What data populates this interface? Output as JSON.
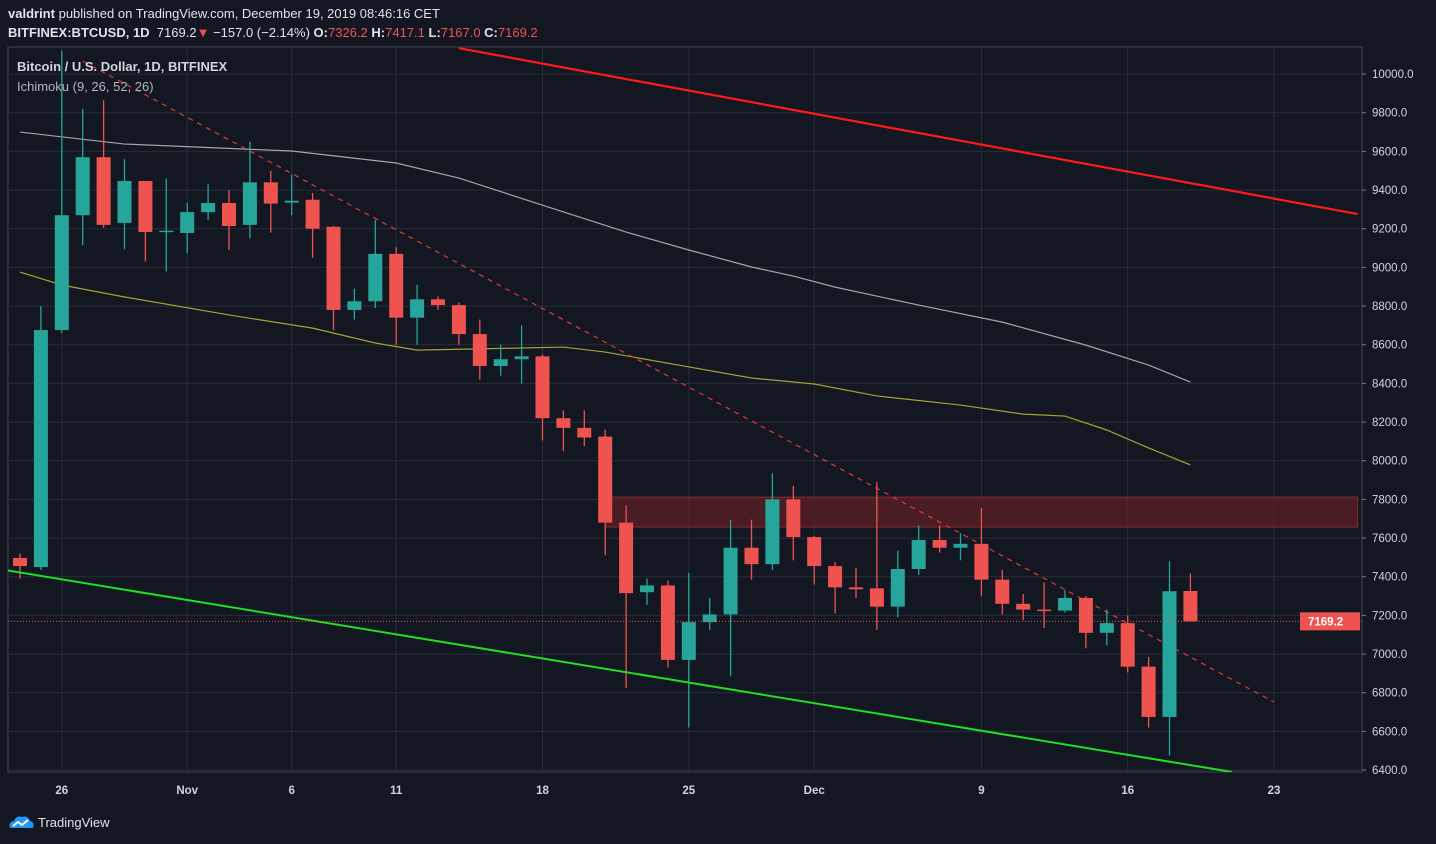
{
  "header": {
    "author": "valdrint",
    "published": "published on TradingView.com, December 19, 2019 08:46:16 CET",
    "symbol": "BITFINEX:BTCUSD, 1D",
    "last": "7169.2",
    "change": "−157.0 (−2.14%)",
    "open_label": "O:",
    "open": "7326.2",
    "high_label": "H:",
    "high": "7417.1",
    "low_label": "L:",
    "low": "7167.0",
    "close_label": "C:",
    "close": "7169.2"
  },
  "legend": {
    "title": "Bitcoin / U.S. Dollar, 1D, BITFINEX",
    "indicator": "Ichimoku (9, 26, 52, 26)"
  },
  "footer": {
    "brand": "TradingView"
  },
  "colors": {
    "up": "#26a69a",
    "down": "#ef5350",
    "background": "#131722",
    "grid": "#2a2e39",
    "resistance": "#ff1a1a",
    "support": "#22dd22",
    "senkou_b": "#a5a5a5",
    "kijun": "#a6a233",
    "zone": "#5e1f24"
  },
  "chart_data": {
    "type": "candlestick",
    "ylim": [
      6390,
      10140
    ],
    "xlim": [
      "2019-10-23",
      "2019-12-27"
    ],
    "grid": true,
    "y_ticks": [
      "6400.0",
      "6600.0",
      "6800.0",
      "7000.0",
      "7200.0",
      "7400.0",
      "7600.0",
      "7800.0",
      "8000.0",
      "8200.0",
      "8400.0",
      "8600.0",
      "8800.0",
      "9000.0",
      "9200.0",
      "9400.0",
      "9600.0",
      "9800.0",
      "10000.0"
    ],
    "x_ticks": [
      {
        "date": "2019-10-26",
        "label": "26"
      },
      {
        "date": "2019-11-01",
        "label": "Nov"
      },
      {
        "date": "2019-11-06",
        "label": "6"
      },
      {
        "date": "2019-11-11",
        "label": "11"
      },
      {
        "date": "2019-11-18",
        "label": "18"
      },
      {
        "date": "2019-11-25",
        "label": "25"
      },
      {
        "date": "2019-12-01",
        "label": "Dec"
      },
      {
        "date": "2019-12-09",
        "label": "9"
      },
      {
        "date": "2019-12-16",
        "label": "16"
      },
      {
        "date": "2019-12-23",
        "label": "23"
      }
    ],
    "start_date": "2019-10-24",
    "candles": [
      [
        7497,
        7520,
        7390,
        7455
      ],
      [
        7450,
        8800,
        7435,
        8676
      ],
      [
        8676,
        10120,
        8660,
        9270
      ],
      [
        9270,
        9820,
        9115,
        9570
      ],
      [
        9570,
        9865,
        9205,
        9220
      ],
      [
        9230,
        9560,
        9095,
        9447
      ],
      [
        9447,
        9447,
        9030,
        9183
      ],
      [
        9185,
        9460,
        8980,
        9190
      ],
      [
        9178,
        9333,
        9074,
        9286
      ],
      [
        9286,
        9430,
        9245,
        9333
      ],
      [
        9333,
        9400,
        9090,
        9214
      ],
      [
        9220,
        9650,
        9150,
        9440
      ],
      [
        9440,
        9500,
        9180,
        9330
      ],
      [
        9335,
        9480,
        9270,
        9345
      ],
      [
        9350,
        9385,
        9050,
        9200
      ],
      [
        9210,
        9215,
        8675,
        8780
      ],
      [
        8780,
        8890,
        8730,
        8825
      ],
      [
        8825,
        9245,
        8790,
        9070
      ],
      [
        9070,
        9105,
        8600,
        8740
      ],
      [
        8740,
        8910,
        8600,
        8835
      ],
      [
        8835,
        8850,
        8780,
        8805
      ],
      [
        8805,
        8820,
        8600,
        8655
      ],
      [
        8655,
        8730,
        8420,
        8490
      ],
      [
        8490,
        8600,
        8440,
        8525
      ],
      [
        8525,
        8700,
        8400,
        8540
      ],
      [
        8540,
        8550,
        8105,
        8220
      ],
      [
        8220,
        8260,
        8050,
        8170
      ],
      [
        8170,
        8260,
        8075,
        8120
      ],
      [
        8125,
        8160,
        7510,
        7680
      ],
      [
        7680,
        7770,
        6825,
        7315
      ],
      [
        7320,
        7390,
        7255,
        7355
      ],
      [
        7355,
        7380,
        6930,
        6970
      ],
      [
        6970,
        7420,
        6620,
        7165
      ],
      [
        7165,
        7290,
        7125,
        7205
      ],
      [
        7205,
        7695,
        6885,
        7550
      ],
      [
        7550,
        7695,
        7385,
        7465
      ],
      [
        7465,
        7935,
        7435,
        7800
      ],
      [
        7800,
        7870,
        7485,
        7605
      ],
      [
        7605,
        7610,
        7360,
        7455
      ],
      [
        7455,
        7475,
        7210,
        7345
      ],
      [
        7345,
        7445,
        7290,
        7335
      ],
      [
        7340,
        7890,
        7125,
        7245
      ],
      [
        7245,
        7535,
        7190,
        7440
      ],
      [
        7440,
        7665,
        7410,
        7590
      ],
      [
        7590,
        7665,
        7525,
        7550
      ],
      [
        7550,
        7625,
        7485,
        7570
      ],
      [
        7570,
        7755,
        7300,
        7385
      ],
      [
        7385,
        7435,
        7205,
        7260
      ],
      [
        7260,
        7310,
        7175,
        7230
      ],
      [
        7230,
        7370,
        7135,
        7225
      ],
      [
        7225,
        7330,
        7215,
        7290
      ],
      [
        7290,
        7300,
        7030,
        7110
      ],
      [
        7110,
        7230,
        7045,
        7160
      ],
      [
        7160,
        7200,
        6905,
        6935
      ],
      [
        6935,
        6985,
        6620,
        6675
      ],
      [
        6675,
        7480,
        6475,
        7325
      ],
      [
        7326.2,
        7417.1,
        7167.0,
        7169.2
      ]
    ],
    "candle_format": [
      "open",
      "high",
      "low",
      "close"
    ],
    "last_price": {
      "value": 7169.2,
      "label": "7169.2"
    },
    "senkou_span_b": [
      [
        "2019-10-24",
        9700
      ],
      [
        "2019-10-29",
        9638
      ],
      [
        "2019-11-06",
        9602
      ],
      [
        "2019-11-11",
        9540
      ],
      [
        "2019-11-14",
        9462
      ],
      [
        "2019-11-18",
        9322
      ],
      [
        "2019-11-22",
        9183
      ],
      [
        "2019-11-25",
        9090
      ],
      [
        "2019-11-28",
        9002
      ],
      [
        "2019-11-30",
        8955
      ],
      [
        "2019-12-02",
        8898
      ],
      [
        "2019-12-06",
        8805
      ],
      [
        "2019-12-10",
        8717
      ],
      [
        "2019-12-14",
        8598
      ],
      [
        "2019-12-17",
        8495
      ],
      [
        "2019-12-19",
        8407
      ]
    ],
    "kijun": [
      [
        "2019-10-24",
        8976
      ],
      [
        "2019-10-26",
        8909
      ],
      [
        "2019-10-29",
        8847
      ],
      [
        "2019-11-03",
        8754
      ],
      [
        "2019-11-07",
        8686
      ],
      [
        "2019-11-10",
        8609
      ],
      [
        "2019-11-12",
        8572
      ],
      [
        "2019-11-17",
        8583
      ],
      [
        "2019-11-19",
        8588
      ],
      [
        "2019-11-21",
        8562
      ],
      [
        "2019-11-25",
        8485
      ],
      [
        "2019-11-28",
        8428
      ],
      [
        "2019-12-01",
        8397
      ],
      [
        "2019-12-04",
        8335
      ],
      [
        "2019-12-08",
        8288
      ],
      [
        "2019-12-11",
        8241
      ],
      [
        "2019-12-13",
        8231
      ],
      [
        "2019-12-15",
        8159
      ],
      [
        "2019-12-17",
        8066
      ],
      [
        "2019-12-19",
        7978
      ]
    ],
    "drawings": {
      "resistance_line": [
        [
          "2019-11-14",
          10134
        ],
        [
          "2019-12-27",
          9276
        ]
      ],
      "support_line": [
        [
          "2019-10-23",
          7440
        ],
        [
          "2019-12-21",
          6390
        ]
      ],
      "dashed_trendline": [
        [
          "2019-10-27",
          10067
        ],
        [
          "2019-12-23",
          6752
        ]
      ],
      "zone": {
        "from": "2019-11-21",
        "to": "2019-12-27",
        "low": 7657,
        "high": 7812
      }
    }
  }
}
